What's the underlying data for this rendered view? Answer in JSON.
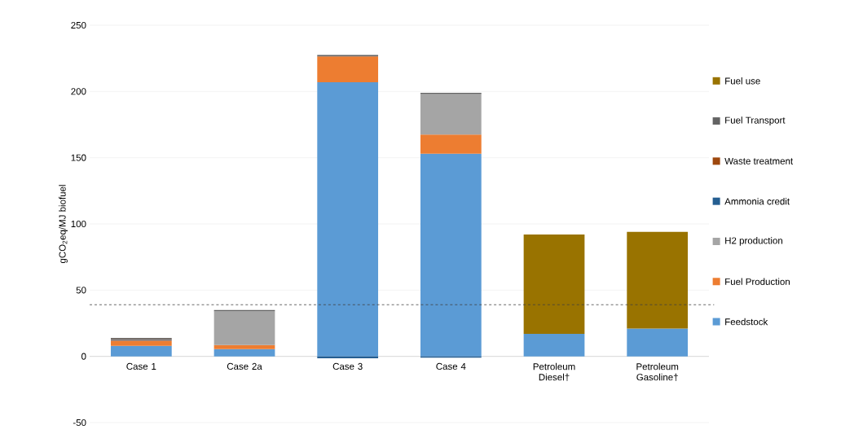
{
  "chart_data": {
    "type": "bar",
    "stacked": true,
    "ylabel": "gCO$_{2}$eq/MJ biofuel",
    "categories": [
      "Case 1",
      "Case 2a",
      "Case 3",
      "Case 4",
      "Petroleum Diesel†",
      "Petroleum Gasoline†"
    ],
    "series": [
      {
        "name": "Feedstock",
        "color": "#5b9bd5",
        "values": [
          8,
          5.5,
          207,
          153,
          17,
          21
        ]
      },
      {
        "name": "Fuel Production",
        "color": "#ed7d31",
        "values": [
          4,
          3,
          19.5,
          14.5,
          null,
          null
        ]
      },
      {
        "name": "H2 production",
        "color": "#a5a5a5",
        "values": [
          null,
          25.5,
          null,
          30.5,
          null,
          null
        ]
      },
      {
        "name": "Ammonia credit",
        "color": "#255e91",
        "values": [
          0.5,
          null,
          -1.5,
          -1,
          null,
          null
        ]
      },
      {
        "name": "Waste treatment",
        "color": "#9e480e",
        "values": [
          0.5,
          null,
          null,
          null,
          null,
          null
        ]
      },
      {
        "name": "Fuel Transport",
        "color": "#636363",
        "values": [
          1,
          1,
          1,
          1,
          null,
          null
        ]
      },
      {
        "name": "Fuel use",
        "color": "#997300",
        "values": [
          null,
          null,
          null,
          null,
          75,
          73
        ]
      }
    ],
    "ylim": [
      -50,
      250
    ],
    "yticks": [
      -50,
      0,
      50,
      100,
      150,
      200,
      250
    ],
    "grid": "y",
    "legend": "right",
    "ref_lines": [
      {
        "axis": "y",
        "value": 39,
        "line_style": "dashed",
        "color": "#404040"
      }
    ]
  }
}
